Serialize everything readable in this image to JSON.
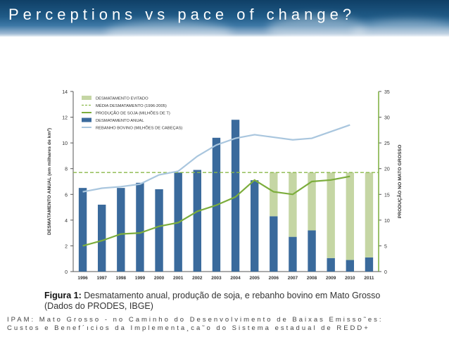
{
  "slide": {
    "title": "Perceptions vs pace of change?",
    "caption_label": "Figura 1:",
    "caption_text": "Desmatamento anual, produção de soja, e rebanho bovino em Mato Grosso",
    "caption_line2": "(Dados do PRODES, IBGE)",
    "source_line1": "IPAM: Mato Grosso - no Caminho do Desenvolvimento de Baixas Emisso˜es:",
    "source_line2": "Custos e Benef´ıcios da Implementa¸ca˜o do Sistema estadual de REDD+"
  },
  "colors": {
    "bar_blue": "#3a6a9c",
    "avoided_green": "#c5d6a4",
    "soy_green": "#7cad3c",
    "cattle_blue": "#a9c6de",
    "mean_dash": "#8ab84a",
    "axis": "#555555",
    "grid": "#d9d9d9"
  },
  "chart_data": {
    "type": "bar",
    "title": "Desmatamento anual, produção de soja, e rebanho bovino em Mato Grosso",
    "categories": [
      "1996",
      "1997",
      "1998",
      "1999",
      "2000",
      "2001",
      "2002",
      "2003",
      "2004",
      "2005",
      "2006",
      "2007",
      "2008",
      "2009",
      "2010",
      "2011"
    ],
    "ylabel": "DESMATAMENTO ANUAL (em milhares de km²)",
    "ylabel_right": "PRODUÇÃO NO MATO GROSSO",
    "ylim": [
      0,
      14
    ],
    "ylim_right": [
      0,
      35
    ],
    "yticks": [
      0,
      2,
      4,
      6,
      8,
      10,
      12,
      14
    ],
    "yticks_right": [
      0,
      5,
      10,
      15,
      20,
      25,
      30,
      35
    ],
    "legend": [
      {
        "key": "avoided",
        "label": "DESMATAMENTO EVITADO"
      },
      {
        "key": "mean",
        "label": "MÉDIA DESMATAMENTO (1996-2005)"
      },
      {
        "key": "soy",
        "label": "PRODUÇÃO DE SOJA (MILHÕES DE T)"
      },
      {
        "key": "annual",
        "label": "DESMATAMENTO ANUAL"
      },
      {
        "key": "cattle",
        "label": "REBANHO BOVINO (MILHÕES DE CABEÇAS)"
      }
    ],
    "series": [
      {
        "name": "DESMATAMENTO ANUAL",
        "axis": "left",
        "values": [
          6.5,
          5.2,
          6.5,
          6.9,
          6.4,
          7.7,
          7.9,
          10.4,
          11.8,
          7.1,
          4.3,
          2.7,
          3.2,
          1.05,
          0.9,
          1.1
        ]
      },
      {
        "name": "DESMATAMENTO EVITADO",
        "axis": "left",
        "values": [
          0,
          0,
          0,
          0,
          0,
          0,
          0,
          0,
          0,
          0,
          3.4,
          5.0,
          4.5,
          6.65,
          6.8,
          6.6
        ]
      },
      {
        "name": "MÉDIA DESMATAMENTO (1996-2005)",
        "axis": "left",
        "values": [
          7.7,
          7.7,
          7.7,
          7.7,
          7.7,
          7.7,
          7.7,
          7.7,
          7.7,
          7.7,
          7.7,
          7.7,
          7.7,
          7.7,
          7.7,
          7.7
        ]
      },
      {
        "name": "PRODUÇÃO DE SOJA (MILHÕES DE T)",
        "axis": "right",
        "values": [
          5.0,
          6.0,
          7.3,
          7.5,
          8.8,
          9.5,
          11.7,
          12.9,
          14.5,
          17.8,
          15.5,
          15.0,
          17.5,
          17.8,
          18.5,
          null
        ]
      },
      {
        "name": "REBANHO BOVINO (MILHÕES DE CABEÇAS)",
        "axis": "right",
        "values": [
          15.5,
          16.2,
          16.5,
          17.0,
          18.8,
          19.5,
          22.4,
          24.6,
          25.9,
          26.6,
          26.1,
          25.6,
          25.9,
          27.2,
          28.5,
          null
        ]
      }
    ]
  }
}
